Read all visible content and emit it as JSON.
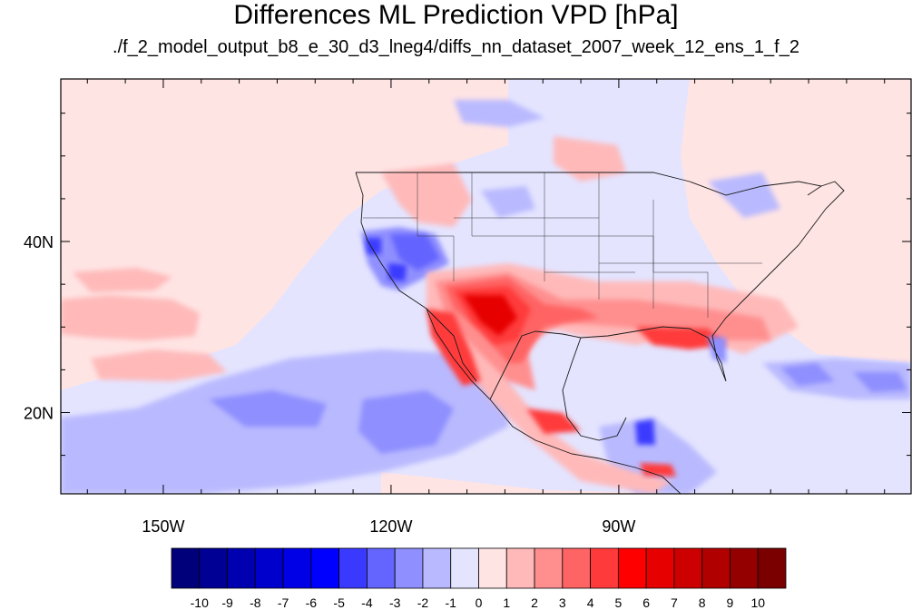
{
  "title": "Differences ML Prediction VPD [hPa]",
  "subtitle": "./f_2_model_output_b8_e_30_d3_lneg4/diffs_nn_dataset_2007_week_12_ens_1_f_2",
  "axes": {
    "lon_range": [
      -163.5,
      -51.5
    ],
    "lat_range": [
      10.5,
      59
    ],
    "lon_ticks": [
      {
        "value": -150,
        "label": "150W"
      },
      {
        "value": -120,
        "label": "120W"
      },
      {
        "value": -90,
        "label": "90W"
      }
    ],
    "lat_ticks": [
      {
        "value": 40,
        "label": "40N"
      },
      {
        "value": 20,
        "label": "20N"
      }
    ]
  },
  "colorbar": {
    "labels": [
      "-10",
      "-9",
      "-8",
      "-7",
      "-6",
      "-5",
      "-4",
      "-3",
      "-2",
      "-1",
      "0",
      "1",
      "2",
      "3",
      "4",
      "5",
      "6",
      "7",
      "8",
      "9",
      "10"
    ],
    "colors": [
      "#00007a",
      "#000094",
      "#0000b0",
      "#0000cc",
      "#0000e6",
      "#0000ff",
      "#3a3aff",
      "#6464ff",
      "#8f8fff",
      "#b9b9ff",
      "#e4e4ff",
      "#ffe4e4",
      "#ffb9b9",
      "#ff8f8f",
      "#ff6464",
      "#ff3a3a",
      "#ff0000",
      "#e60000",
      "#cc0000",
      "#b00000",
      "#940000",
      "#7a0000"
    ]
  }
}
